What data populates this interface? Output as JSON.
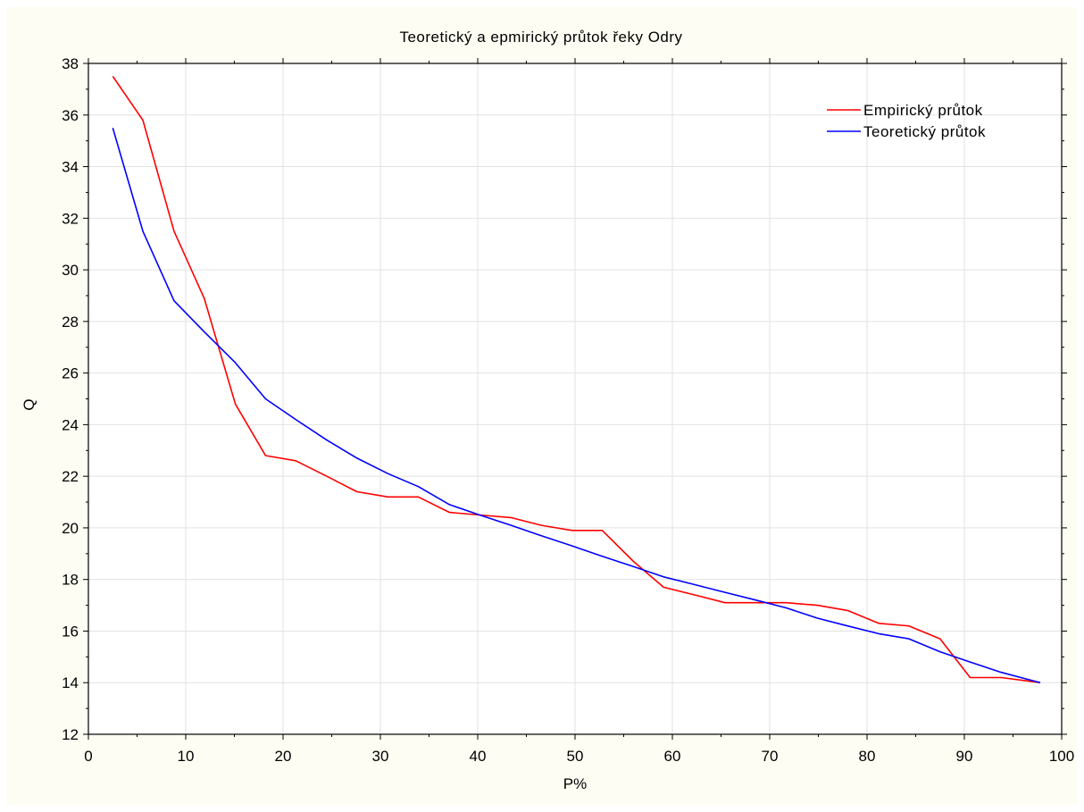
{
  "chart_data": {
    "type": "line",
    "title": "Teoretický a epmirický průtok řeky Odry",
    "xlabel": "P%",
    "ylabel": "Q",
    "xlim": [
      0,
      100
    ],
    "ylim": [
      12,
      38
    ],
    "xticks": [
      "0",
      "10",
      "20",
      "30",
      "40",
      "50",
      "60",
      "70",
      "80",
      "90",
      "100"
    ],
    "yticks": [
      "12",
      "14",
      "16",
      "18",
      "20",
      "22",
      "24",
      "26",
      "28",
      "30",
      "32",
      "34",
      "36",
      "38"
    ],
    "grid": true,
    "legend_position": "top-right",
    "series": [
      {
        "name": "Empirický průtok",
        "color": "#ff0000",
        "x": [
          2.5,
          5.6,
          8.8,
          11.9,
          15.1,
          18.2,
          21.3,
          24.5,
          27.6,
          30.8,
          33.9,
          37.1,
          40.2,
          43.4,
          46.5,
          49.7,
          52.8,
          56.0,
          59.1,
          62.3,
          65.4,
          68.6,
          71.7,
          74.9,
          78.0,
          81.2,
          84.3,
          87.5,
          90.6,
          93.8,
          97.8
        ],
        "values": [
          37.5,
          35.8,
          31.5,
          28.9,
          24.8,
          22.8,
          22.6,
          22.0,
          21.4,
          21.2,
          21.2,
          20.6,
          20.5,
          20.4,
          20.1,
          19.9,
          19.9,
          18.7,
          17.7,
          17.4,
          17.1,
          17.1,
          17.1,
          17.0,
          16.8,
          16.3,
          16.2,
          15.7,
          14.2,
          14.2,
          14.0
        ]
      },
      {
        "name": "Teoretický průtok",
        "color": "#0000ff",
        "x": [
          2.5,
          5.6,
          8.8,
          11.9,
          15.1,
          18.2,
          21.3,
          24.5,
          27.6,
          30.8,
          33.9,
          37.1,
          40.2,
          43.4,
          46.5,
          49.7,
          52.8,
          56.0,
          59.1,
          62.3,
          65.4,
          68.6,
          71.7,
          74.9,
          78.0,
          81.2,
          84.3,
          87.5,
          90.6,
          93.8,
          97.8
        ],
        "values": [
          35.5,
          31.5,
          28.8,
          27.6,
          26.4,
          25.0,
          24.2,
          23.4,
          22.7,
          22.1,
          21.6,
          20.9,
          20.5,
          20.1,
          19.7,
          19.3,
          18.9,
          18.5,
          18.1,
          17.8,
          17.5,
          17.2,
          16.9,
          16.5,
          16.2,
          15.9,
          15.7,
          15.2,
          14.8,
          14.4,
          14.0
        ]
      }
    ]
  }
}
